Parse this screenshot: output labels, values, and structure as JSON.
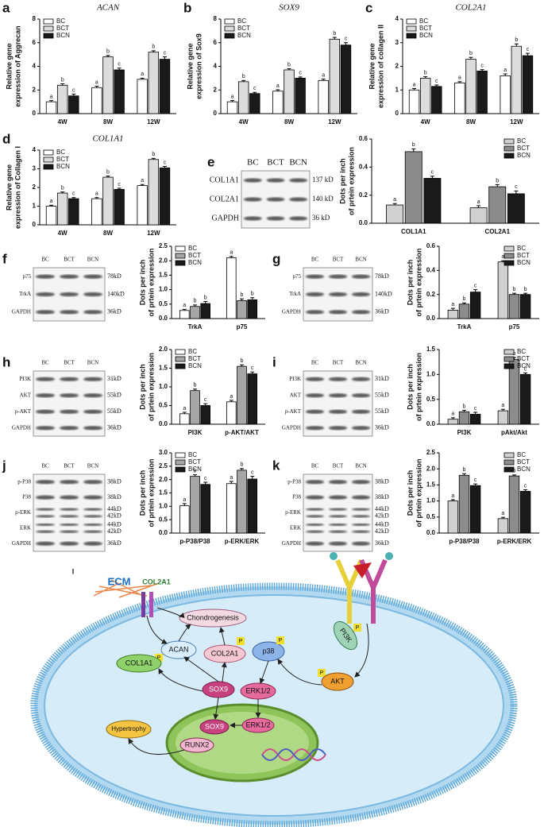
{
  "chart_data": [
    {
      "panel": "a",
      "type": "bar",
      "title": "ACAN",
      "ylabel": [
        "Relative gene",
        "expression of Aggrecan"
      ],
      "categories": [
        "4W",
        "8W",
        "12W"
      ],
      "ylim": [
        0,
        8
      ],
      "yticks": [
        0,
        2,
        4,
        6,
        8
      ],
      "legend": "upper left",
      "series": [
        {
          "name": "BC",
          "color": "#ffffff",
          "values": [
            1.0,
            2.2,
            2.9
          ],
          "errors": [
            0.1,
            0.12,
            0.1
          ],
          "sig_labels": [
            "a",
            "a",
            "a"
          ]
        },
        {
          "name": "BCT",
          "color": "#dcdcdc",
          "values": [
            2.4,
            4.8,
            5.2
          ],
          "errors": [
            0.12,
            0.12,
            0.12
          ],
          "sig_labels": [
            "b",
            "b",
            "b"
          ]
        },
        {
          "name": "BCN",
          "color": "#1a1a1a",
          "values": [
            1.5,
            3.7,
            4.6
          ],
          "errors": [
            0.15,
            0.15,
            0.2
          ],
          "sig_labels": [
            "c",
            "c",
            "c"
          ]
        }
      ]
    },
    {
      "panel": "b",
      "type": "bar",
      "title": "SOX9",
      "ylabel": [
        "Relative gene",
        "expression of Sox9"
      ],
      "categories": [
        "4W",
        "8W",
        "12W"
      ],
      "ylim": [
        0,
        8
      ],
      "yticks": [
        0,
        2,
        4,
        6,
        8
      ],
      "legend": "upper left",
      "series": [
        {
          "name": "BC",
          "color": "#ffffff",
          "values": [
            1.0,
            1.9,
            2.8
          ],
          "errors": [
            0.1,
            0.12,
            0.12
          ],
          "sig_labels": [
            "a",
            "a",
            "a"
          ]
        },
        {
          "name": "BCT",
          "color": "#dcdcdc",
          "values": [
            2.7,
            3.7,
            6.3
          ],
          "errors": [
            0.1,
            0.1,
            0.15
          ],
          "sig_labels": [
            "b",
            "b",
            "b"
          ]
        },
        {
          "name": "BCN",
          "color": "#1a1a1a",
          "values": [
            1.7,
            3.0,
            5.8
          ],
          "errors": [
            0.1,
            0.1,
            0.2
          ],
          "sig_labels": [
            "c",
            "c",
            "c"
          ]
        }
      ]
    },
    {
      "panel": "c",
      "type": "bar",
      "title": "COL2A1",
      "ylabel": [
        "Relative gene",
        "expression of collagen II"
      ],
      "categories": [
        "4W",
        "8W",
        "12W"
      ],
      "ylim": [
        0,
        4
      ],
      "yticks": [
        0,
        1,
        2,
        3,
        4
      ],
      "legend": "upper left",
      "series": [
        {
          "name": "BC",
          "color": "#ffffff",
          "values": [
            1.0,
            1.3,
            1.6
          ],
          "errors": [
            0.06,
            0.05,
            0.08
          ],
          "sig_labels": [
            "a",
            "a",
            "a"
          ]
        },
        {
          "name": "BCT",
          "color": "#dcdcdc",
          "values": [
            1.5,
            2.3,
            2.85
          ],
          "errors": [
            0.06,
            0.08,
            0.1
          ],
          "sig_labels": [
            "b",
            "b",
            "b"
          ]
        },
        {
          "name": "BCN",
          "color": "#1a1a1a",
          "values": [
            1.15,
            1.8,
            2.45
          ],
          "errors": [
            0.06,
            0.06,
            0.1
          ],
          "sig_labels": [
            "c",
            "c",
            "c"
          ]
        }
      ]
    },
    {
      "panel": "d",
      "type": "bar",
      "title": "COL1A1",
      "ylabel": [
        "Relative gene",
        "expression of Collagen I"
      ],
      "categories": [
        "4W",
        "8W",
        "12W"
      ],
      "ylim": [
        0,
        4
      ],
      "yticks": [
        0,
        1,
        2,
        3,
        4
      ],
      "legend": "upper left",
      "series": [
        {
          "name": "BC",
          "color": "#ffffff",
          "values": [
            1.0,
            1.4,
            2.1
          ],
          "errors": [
            0.05,
            0.06,
            0.06
          ],
          "sig_labels": [
            "a",
            "a",
            "a"
          ]
        },
        {
          "name": "BCT",
          "color": "#dcdcdc",
          "values": [
            1.7,
            2.55,
            3.5
          ],
          "errors": [
            0.06,
            0.06,
            0.06
          ],
          "sig_labels": [
            "b",
            "b",
            "b"
          ]
        },
        {
          "name": "BCN",
          "color": "#1a1a1a",
          "values": [
            1.4,
            1.9,
            3.05
          ],
          "errors": [
            0.06,
            0.06,
            0.08
          ],
          "sig_labels": [
            "c",
            "c",
            "c"
          ]
        }
      ]
    },
    {
      "type": "bar",
      "ylabel": [
        "Dots per inch",
        "of prtein expression"
      ],
      "categories": [
        "COL1A1",
        "COL2A1"
      ],
      "ylim": [
        0,
        0.6
      ],
      "yticks": [
        {
          "value": 0,
          "label": "0.0"
        },
        0.2,
        0.4,
        0.6
      ],
      "legend": "upper right",
      "series": [
        {
          "name": "BC",
          "color": "#d0d0d0",
          "values": [
            0.13,
            0.11
          ],
          "errors": [
            0.01,
            0.015
          ],
          "sig_labels": [
            "a",
            "a"
          ]
        },
        {
          "name": "BCT",
          "color": "#8c8c8c",
          "values": [
            0.51,
            0.26
          ],
          "errors": [
            0.02,
            0.015
          ],
          "sig_labels": [
            "b",
            "b"
          ]
        },
        {
          "name": "BCN",
          "color": "#1a1a1a",
          "values": [
            0.32,
            0.21
          ],
          "errors": [
            0.015,
            0.02
          ],
          "sig_labels": [
            "c",
            "c"
          ]
        }
      ]
    },
    {
      "type": "bar",
      "ylabel": [
        "Dots per inch",
        "of prtein expression"
      ],
      "categories": [
        "TrkA",
        "p75"
      ],
      "ylim": [
        0,
        2.5
      ],
      "yticks": [
        {
          "value": 0,
          "label": "0.0"
        },
        0.5,
        {
          "value": 1,
          "label": "1.0"
        },
        1.5,
        {
          "value": 2,
          "label": "2.0"
        },
        2.5
      ],
      "legend": "upper left",
      "series": [
        {
          "name": "BC",
          "color": "#ffffff",
          "values": [
            0.28,
            2.1
          ],
          "errors": [
            0.04,
            0.05
          ],
          "sig_labels": [
            "a",
            "a"
          ]
        },
        {
          "name": "BCT",
          "color": "#a6a6a6",
          "values": [
            0.42,
            0.62
          ],
          "errors": [
            0.05,
            0.06
          ],
          "sig_labels": [
            "b",
            "b"
          ]
        },
        {
          "name": "BCN",
          "color": "#1a1a1a",
          "values": [
            0.52,
            0.65
          ],
          "errors": [
            0.07,
            0.07
          ],
          "sig_labels": [
            "b",
            "b"
          ]
        }
      ]
    },
    {
      "type": "bar",
      "ylabel": [
        "Dots per inch",
        "of prtein expression"
      ],
      "categories": [
        "TrkA",
        "p75"
      ],
      "ylim": [
        0,
        0.6
      ],
      "yticks": [
        {
          "value": 0,
          "label": "0.0"
        },
        0.2,
        0.4,
        0.6
      ],
      "legend": "upper right",
      "series": [
        {
          "name": "BC",
          "color": "#d0d0d0",
          "values": [
            0.07,
            0.47
          ],
          "errors": [
            0.015,
            0.01
          ],
          "sig_labels": [
            "a",
            "a"
          ]
        },
        {
          "name": "BCT",
          "color": "#8c8c8c",
          "values": [
            0.12,
            0.2
          ],
          "errors": [
            0.01,
            0.01
          ],
          "sig_labels": [
            "b",
            "b"
          ]
        },
        {
          "name": "BCN",
          "color": "#1a1a1a",
          "values": [
            0.22,
            0.2
          ],
          "errors": [
            0.02,
            0.01
          ],
          "sig_labels": [
            "c",
            "b"
          ]
        }
      ]
    },
    {
      "type": "bar",
      "ylabel": [
        "Dots per inch",
        "of prtein expression"
      ],
      "categories": [
        "PI3K",
        "p-AKT/AKT"
      ],
      "ylim": [
        0,
        2
      ],
      "yticks": [
        {
          "value": 0,
          "label": "0.0"
        },
        0.5,
        {
          "value": 1,
          "label": "1.0"
        },
        1.5,
        {
          "value": 2,
          "label": "2.0"
        }
      ],
      "legend": "upper left",
      "series": [
        {
          "name": "BC",
          "color": "#ffffff",
          "values": [
            0.28,
            0.6
          ],
          "errors": [
            0.04,
            0.04
          ],
          "sig_labels": [
            "a",
            "a"
          ]
        },
        {
          "name": "BCT",
          "color": "#a6a6a6",
          "values": [
            0.9,
            1.55
          ],
          "errors": [
            0.04,
            0.04
          ],
          "sig_labels": [
            "b",
            "b"
          ]
        },
        {
          "name": "BCN",
          "color": "#1a1a1a",
          "values": [
            0.5,
            1.35
          ],
          "errors": [
            0.05,
            0.05
          ],
          "sig_labels": [
            "c",
            "c"
          ]
        }
      ]
    },
    {
      "type": "bar",
      "ylabel": [
        "Dots per inch",
        "of prtein expression"
      ],
      "categories": [
        "PI3K",
        "pAkt/Akt"
      ],
      "ylim": [
        0,
        1.5
      ],
      "yticks": [
        {
          "value": 0,
          "label": "0.0"
        },
        0.5,
        {
          "value": 1,
          "label": "1.0"
        },
        1.5
      ],
      "legend": "upper right",
      "series": [
        {
          "name": "BC",
          "color": "#d0d0d0",
          "values": [
            0.1,
            0.27
          ],
          "errors": [
            0.03,
            0.03
          ],
          "sig_labels": [
            "a",
            "a"
          ]
        },
        {
          "name": "BCT",
          "color": "#8c8c8c",
          "values": [
            0.25,
            1.3
          ],
          "errors": [
            0.03,
            0.04
          ],
          "sig_labels": [
            "b",
            "b"
          ]
        },
        {
          "name": "BCN",
          "color": "#1a1a1a",
          "values": [
            0.2,
            1.0
          ],
          "errors": [
            0.04,
            0.03
          ],
          "sig_labels": [
            "c",
            "c"
          ]
        }
      ]
    },
    {
      "type": "bar",
      "ylabel": [
        "Dots per inch",
        "of prtein expression"
      ],
      "categories": [
        "p-P38/P38",
        "p-ERK/ERK"
      ],
      "ylim": [
        0,
        3
      ],
      "yticks": [
        {
          "value": 0,
          "label": "0.0"
        },
        0.5,
        {
          "value": 1,
          "label": "1.0"
        },
        1.5,
        {
          "value": 2,
          "label": "2.0"
        },
        2.5,
        {
          "value": 3,
          "label": "3.0"
        }
      ],
      "legend": "upper left",
      "series": [
        {
          "name": "BC",
          "color": "#ffffff",
          "values": [
            1.02,
            1.85
          ],
          "errors": [
            0.08,
            0.08
          ],
          "sig_labels": [
            "a",
            "a"
          ]
        },
        {
          "name": "BCT",
          "color": "#a6a6a6",
          "values": [
            2.12,
            2.35
          ],
          "errors": [
            0.06,
            0.06
          ],
          "sig_labels": [
            "b",
            "b"
          ]
        },
        {
          "name": "BCN",
          "color": "#1a1a1a",
          "values": [
            1.82,
            2.02
          ],
          "errors": [
            0.08,
            0.1
          ],
          "sig_labels": [
            "c",
            "c"
          ]
        }
      ]
    },
    {
      "type": "bar",
      "ylabel": [
        "Dots per inch",
        "of prtein expression"
      ],
      "categories": [
        "p-P38/P38",
        "p-ERK/ERK"
      ],
      "ylim": [
        0,
        2.5
      ],
      "yticks": [
        {
          "value": 0,
          "label": "0.0"
        },
        0.5,
        {
          "value": 1,
          "label": "1.0"
        },
        1.5,
        {
          "value": 2,
          "label": "2.0"
        },
        2.5
      ],
      "legend": "upper right",
      "series": [
        {
          "name": "BC",
          "color": "#d0d0d0",
          "values": [
            1.0,
            0.45
          ],
          "errors": [
            0.04,
            0.04
          ],
          "sig_labels": [
            "a",
            "a"
          ]
        },
        {
          "name": "BCT",
          "color": "#8c8c8c",
          "values": [
            1.8,
            1.78
          ],
          "errors": [
            0.05,
            0.03
          ],
          "sig_labels": [
            "b",
            "b"
          ]
        },
        {
          "name": "BCN",
          "color": "#1a1a1a",
          "values": [
            1.48,
            1.3
          ],
          "errors": [
            0.05,
            0.05
          ],
          "sig_labels": [
            "c",
            "c"
          ]
        }
      ]
    }
  ],
  "blots": [
    {
      "panel": "e",
      "lanes": [
        "BC",
        "BCT",
        "BCN"
      ],
      "rows": [
        {
          "name": "COL1A1",
          "sizes": [
            "137 kD"
          ]
        },
        {
          "name": "COL2A1",
          "sizes": [
            "140 kD"
          ]
        },
        {
          "name": "GAPDH",
          "sizes": [
            "36 kD"
          ]
        }
      ]
    },
    {
      "panel": "f",
      "lanes": [
        "BC",
        "BCT",
        "BCN"
      ],
      "rows": [
        {
          "name": "p75",
          "sizes": [
            "78kD"
          ]
        },
        {
          "name": "TrkA",
          "sizes": [
            "140kD"
          ]
        },
        {
          "name": "GAPDH",
          "sizes": [
            "36kD"
          ]
        }
      ]
    },
    {
      "panel": "g",
      "lanes": [
        "BC",
        "BCT",
        "BCN"
      ],
      "rows": [
        {
          "name": "p75",
          "sizes": [
            "78kD"
          ]
        },
        {
          "name": "TrkA",
          "sizes": [
            "140kD"
          ]
        },
        {
          "name": "GAPDH",
          "sizes": [
            "36kD"
          ]
        }
      ]
    },
    {
      "panel": "h",
      "lanes": [
        "BC",
        "BCT",
        "BCN"
      ],
      "rows": [
        {
          "name": "PI3K",
          "sizes": [
            "31kD"
          ]
        },
        {
          "name": "AKT",
          "sizes": [
            "55kD"
          ]
        },
        {
          "name": "p-AKT",
          "sizes": [
            "55kD"
          ]
        },
        {
          "name": "GAPDH",
          "sizes": [
            "36kD"
          ]
        }
      ]
    },
    {
      "panel": "i",
      "lanes": [
        "BC",
        "BCT",
        "BCN"
      ],
      "rows": [
        {
          "name": "PI3K",
          "sizes": [
            "31kD"
          ]
        },
        {
          "name": "AKT",
          "sizes": [
            "55kD"
          ]
        },
        {
          "name": "p-AKT",
          "sizes": [
            "55kD"
          ]
        },
        {
          "name": "GAPDH",
          "sizes": [
            "36kD"
          ]
        }
      ]
    },
    {
      "panel": "j",
      "lanes": [
        "BC",
        "BCT",
        "BCN"
      ],
      "rows": [
        {
          "name": "p-P38",
          "sizes": [
            "38kD"
          ]
        },
        {
          "name": "P38",
          "sizes": [
            "38kD"
          ]
        },
        {
          "name": "p-ERK",
          "sizes": [
            "44kD",
            "42kD"
          ]
        },
        {
          "name": "ERK",
          "sizes": [
            "44kD",
            "42kD"
          ]
        },
        {
          "name": "GAPDH",
          "sizes": [
            "36kD"
          ]
        }
      ]
    },
    {
      "panel": "k",
      "lanes": [
        "BC",
        "BCT",
        "BCN"
      ],
      "rows": [
        {
          "name": "p-P38",
          "sizes": [
            "38kD"
          ]
        },
        {
          "name": "P38",
          "sizes": [
            "38kD"
          ]
        },
        {
          "name": "p-ERK",
          "sizes": [
            "44kD",
            "42kD"
          ]
        },
        {
          "name": "ERK",
          "sizes": [
            "44kD",
            "42kD"
          ]
        },
        {
          "name": "GAPDH",
          "sizes": [
            "36kD"
          ]
        }
      ]
    }
  ],
  "diagram": {
    "panel": "l",
    "labels": [
      "ECM",
      "COL2A1",
      "Chondrogenesis",
      "ACAN",
      "COL2A1",
      "p38",
      "P",
      "SOX9",
      "COL1A1",
      "ERK1/2",
      "AKT",
      "PI3K",
      "SOX9",
      "ERK1/2",
      "RUNX2",
      "Hypertrophy"
    ]
  }
}
